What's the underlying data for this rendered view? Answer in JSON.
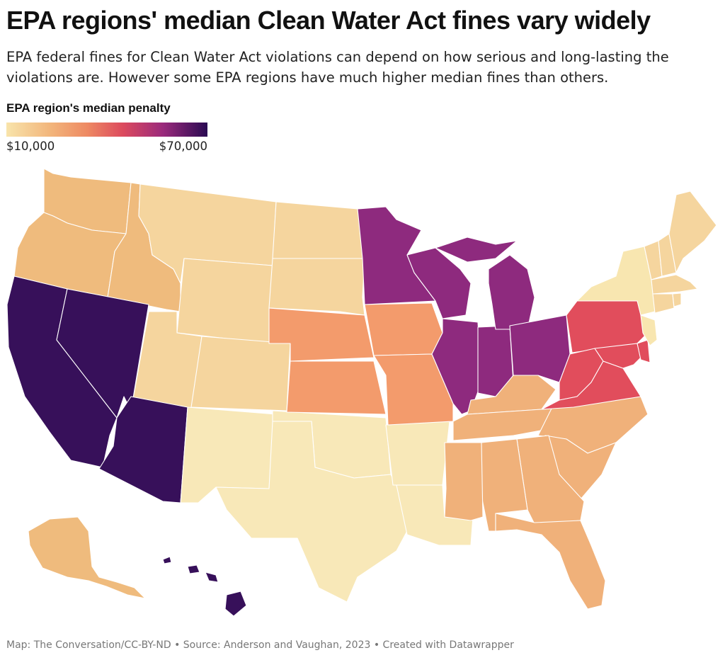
{
  "title": "EPA regions' median Clean Water Act fines vary widely",
  "subtitle": "EPA federal fines for Clean Water Act violations can depend on how serious and long-lasting the violations are. However some EPA regions have much higher median fines than others.",
  "legend": {
    "title": "EPA region's median penalty",
    "min_label": "$10,000",
    "max_label": "$70,000",
    "gradient_colors": [
      "#f8e4ab",
      "#f2b57b",
      "#ee8a63",
      "#dc4a5e",
      "#9a2a7c",
      "#2a0a52"
    ]
  },
  "source": "Map: The Conversation/CC-BY-ND • Source: Anderson and Vaughan, 2023 • Created with Datawrapper",
  "region_colors": {
    "region_1": "#f5d59e",
    "region_2": "#f8e6b0",
    "region_3": "#e14d5c",
    "region_4": "#f0b17a",
    "region_5": "#8e2a7e",
    "region_6": "#f8e8b8",
    "region_7": "#f39b6c",
    "region_8": "#f5d59e",
    "region_9": "#37105a",
    "region_10": "#efbb7d"
  }
}
